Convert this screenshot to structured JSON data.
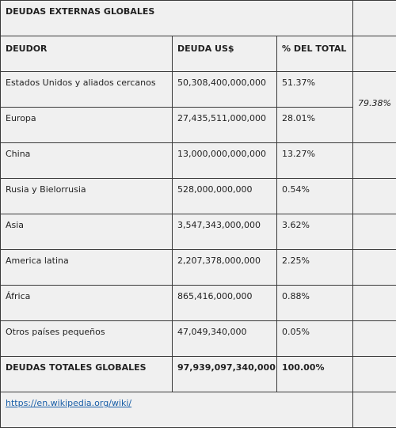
{
  "table": {
    "title": "DEUDAS EXTERNAS GLOBALES",
    "header": [
      "DEUDOR",
      "DEUDA US$",
      "% DEL TOTAL"
    ],
    "rows": [
      [
        "Estados Unidos y aliados cercanos",
        "50,308,400,000,000",
        "51.37%"
      ],
      [
        "Europa",
        "27,435,511,000,000",
        "28.01%"
      ],
      [
        "China",
        "13,000,000,000,000",
        "13.27%"
      ],
      [
        "Rusia y Bielorrusia",
        "528,000,000,000",
        "0.54%"
      ],
      [
        "Asia",
        "3,547,343,000,000",
        "3.62%"
      ],
      [
        "America latina",
        "2,207,378,000,000",
        "2.25%"
      ],
      [
        "África",
        "865,416,000,000",
        "0.88%"
      ],
      [
        "Otros países pequeños",
        "47,049,340,000",
        "0.05%"
      ]
    ],
    "total": [
      "DEUDAS TOTALES GLOBALES",
      "97,939,097,340,000",
      "100.00%"
    ],
    "side_note": "79.38%",
    "source": "https://en.wikipedia.org/wiki/"
  }
}
